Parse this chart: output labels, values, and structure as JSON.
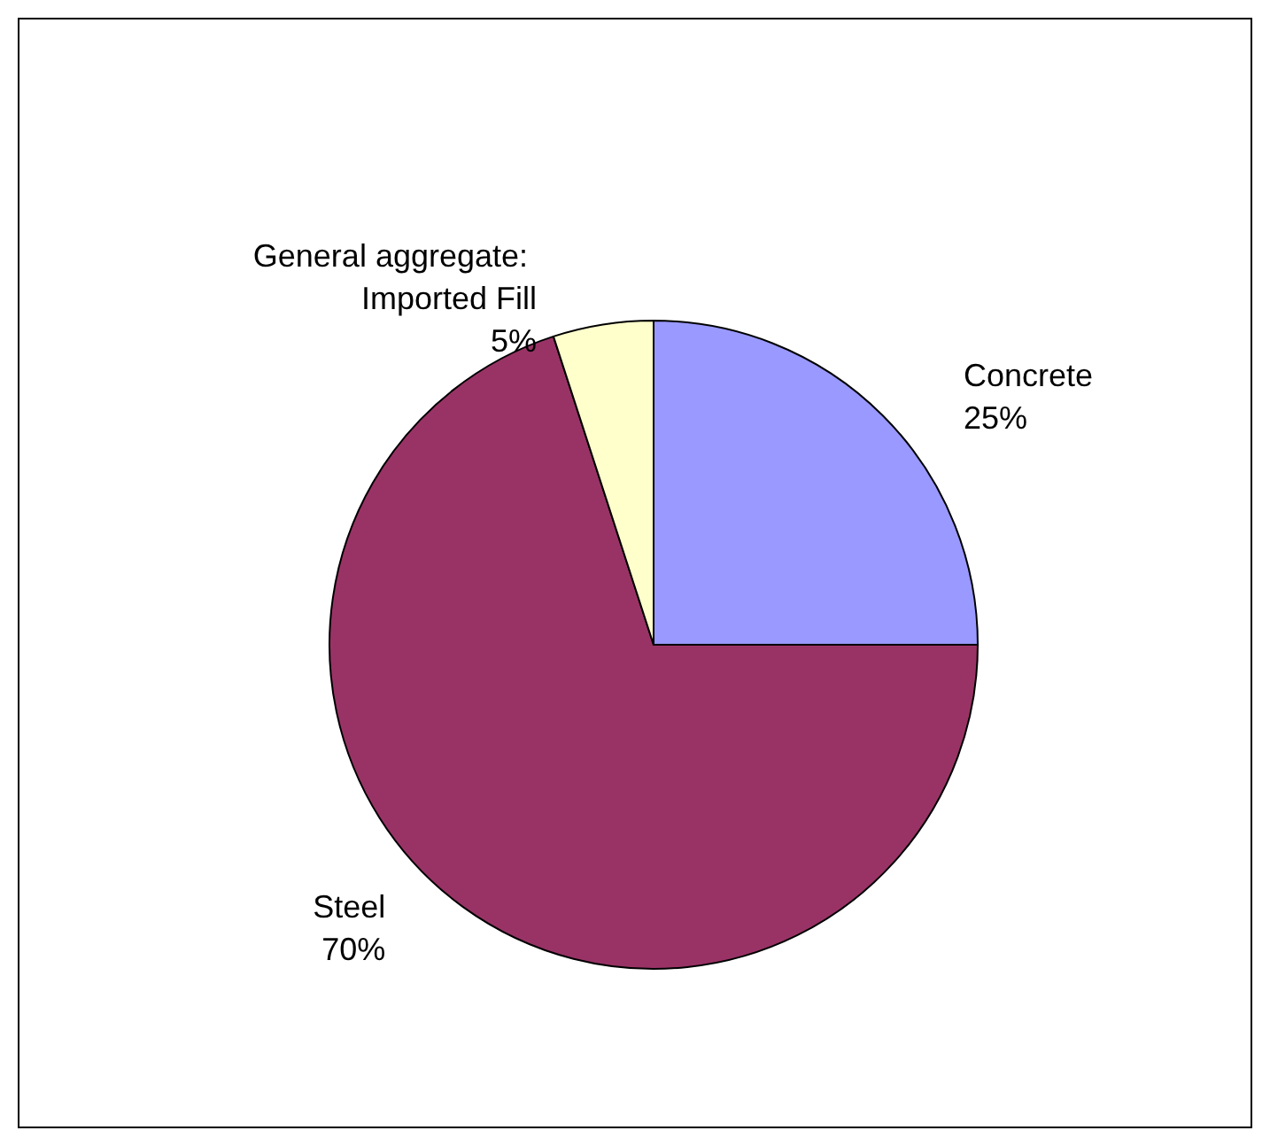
{
  "chart_data": {
    "type": "pie",
    "categories": [
      "Concrete",
      "Steel",
      "General aggregate: Imported Fill"
    ],
    "values": [
      25,
      70,
      5
    ],
    "colors": [
      "#9999ff",
      "#993366",
      "#ffffcc"
    ],
    "value_labels": [
      "25%",
      "70%",
      "5%"
    ],
    "legend": false
  }
}
